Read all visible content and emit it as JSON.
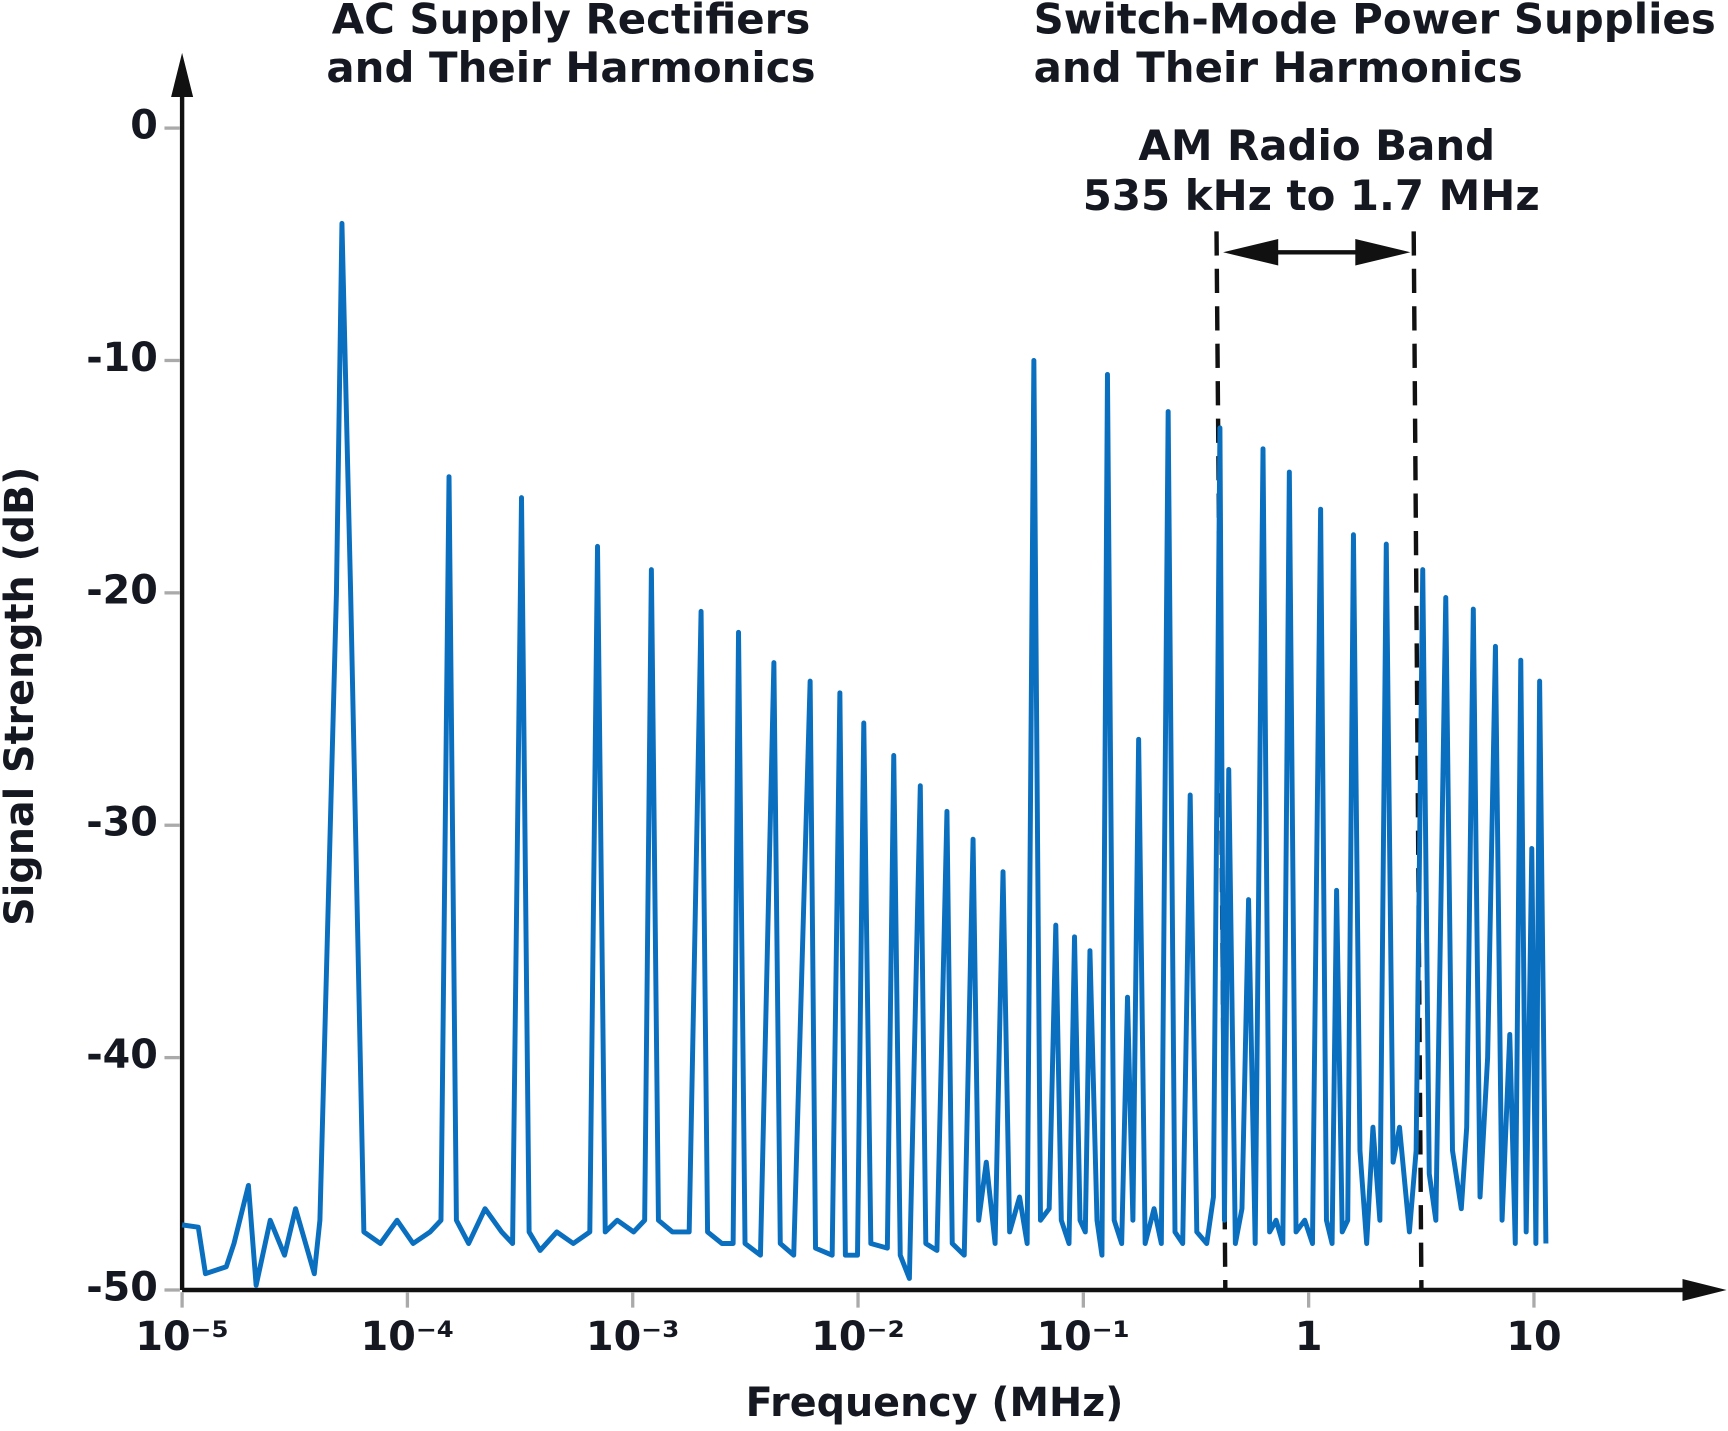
{
  "chart_data": {
    "type": "line",
    "xlabel": "Frequency (MHz)",
    "ylabel": "Signal Strength (dB)",
    "annotations": [
      [
        "AC Supply Rectifiers",
        "and Their Harmonics"
      ],
      [
        "Switch-Mode Power Supplies",
        "and Their Harmonics"
      ],
      [
        "AM Radio Band",
        "535 kHz to 1.7 MHz"
      ]
    ],
    "log_x": true,
    "grid": false,
    "color": "#0b6fbf",
    "xlim": [
      1e-05,
      70
    ],
    "xticks": [
      {
        "value": 1e-05,
        "label": "10⁻⁵"
      },
      {
        "value": 0.0001,
        "label": "10⁻⁴"
      },
      {
        "value": 0.001,
        "label": "10⁻³"
      },
      {
        "value": 0.01,
        "label": "10⁻²"
      },
      {
        "value": 0.1,
        "label": "10⁻¹"
      },
      1,
      10
    ],
    "ylim": [
      -50,
      3
    ],
    "yticks": [
      0,
      -10,
      -20,
      -30,
      -40,
      -50
    ],
    "x": [
      1e-05,
      1.18e-05,
      1.27e-05,
      1.57e-05,
      1.7e-05,
      1.97e-05,
      2.13e-05,
      2.46e-05,
      2.85e-05,
      3.19e-05,
      3.86e-05,
      4.09e-05,
      4.84e-05,
      5.12e-05,
      5.6e-05,
      6.41e-05,
      7.59e-05,
      8.99e-05,
      0.000106,
      0.000126,
      0.000141,
      0.000153,
      0.000165,
      0.000187,
      0.000221,
      0.000262,
      0.000293,
      0.000321,
      0.000347,
      0.000388,
      0.00046,
      0.000545,
      0.000645,
      0.000698,
      0.000755,
      0.000854,
      0.00101,
      0.00113,
      0.00121,
      0.0013,
      0.0015,
      0.00178,
      0.00201,
      0.00215,
      0.00249,
      0.00279,
      0.00295,
      0.00315,
      0.00369,
      0.00423,
      0.00452,
      0.00518,
      0.00613,
      0.00648,
      0.00768,
      0.00831,
      0.00879,
      0.00995,
      0.0106,
      0.0114,
      0.0135,
      0.0144,
      0.0154,
      0.0169,
      0.0189,
      0.02,
      0.0224,
      0.0248,
      0.0262,
      0.0296,
      0.0324,
      0.0343,
      0.0371,
      0.0406,
      0.044,
      0.0471,
      0.0521,
      0.0563,
      0.0603,
      0.0645,
      0.0705,
      0.0755,
      0.0798,
      0.0864,
      0.0914,
      0.0967,
      0.102,
      0.107,
      0.115,
      0.121,
      0.128,
      0.137,
      0.148,
      0.157,
      0.166,
      0.176,
      0.188,
      0.206,
      0.222,
      0.238,
      0.255,
      0.276,
      0.298,
      0.319,
      0.353,
      0.378,
      0.404,
      0.423,
      0.442,
      0.473,
      0.506,
      0.541,
      0.579,
      0.627,
      0.671,
      0.717,
      0.768,
      0.821,
      0.879,
      0.961,
      1.04,
      1.13,
      1.2,
      1.27,
      1.33,
      1.41,
      1.49,
      1.58,
      1.69,
      1.81,
      1.93,
      2.07,
      2.21,
      2.37,
      2.53,
      2.8,
      3,
      3.21,
      3.43,
      3.67,
      4.06,
      4.35,
      4.76,
      5.03,
      5.38,
      5.76,
      6.23,
      6.75,
      7.22,
      7.81,
      8.26,
      8.74,
      9.24,
      9.78,
      10.2,
      10.6,
      11.3
    ],
    "values": [
      -47.2,
      -47.3,
      -49.3,
      -49,
      -48,
      -45.5,
      -49.8,
      -47,
      -48.5,
      -46.5,
      -49.3,
      -47,
      -20,
      -4.1,
      -20,
      -47.5,
      -48,
      -47,
      -48,
      -47.5,
      -47,
      -15,
      -47,
      -48,
      -46.5,
      -47.5,
      -48,
      -15.9,
      -47.5,
      -48.3,
      -47.5,
      -48,
      -47.5,
      -18,
      -47.5,
      -47,
      -47.5,
      -47,
      -19,
      -47,
      -47.5,
      -47.5,
      -20.8,
      -47.5,
      -48,
      -48,
      -21.7,
      -48,
      -48.5,
      -23,
      -48,
      -48.5,
      -23.8,
      -48.2,
      -48.5,
      -24.3,
      -48.5,
      -48.5,
      -25.6,
      -48,
      -48.2,
      -27,
      -48.5,
      -49.5,
      -28.3,
      -48,
      -48.3,
      -29.4,
      -48,
      -48.5,
      -30.6,
      -47,
      -44.5,
      -48,
      -32,
      -47.5,
      -46,
      -48,
      -10,
      -47,
      -46.5,
      -34.3,
      -47,
      -48,
      -34.8,
      -47,
      -47.5,
      -35.4,
      -47,
      -48.5,
      -10.6,
      -47,
      -48,
      -37.4,
      -47,
      -26.3,
      -48,
      -46.5,
      -48,
      -12.2,
      -47.5,
      -48,
      -28.7,
      -47.5,
      -48,
      -46,
      -12.9,
      -47,
      -27.6,
      -48,
      -46.5,
      -33.2,
      -48,
      -13.8,
      -47.5,
      -47,
      -48,
      -14.8,
      -47.5,
      -47,
      -48,
      -16.4,
      -47,
      -48,
      -32.8,
      -47.5,
      -47,
      -17.5,
      -44,
      -48,
      -43,
      -47,
      -17.9,
      -44.5,
      -43,
      -47.5,
      -44,
      -19,
      -45,
      -47,
      -20.2,
      -44,
      -46.5,
      -43,
      -20.7,
      -46,
      -40,
      -22.3,
      -47,
      -39,
      -48,
      -22.9,
      -47.5,
      -31,
      -48,
      -23.8,
      -48
    ]
  }
}
